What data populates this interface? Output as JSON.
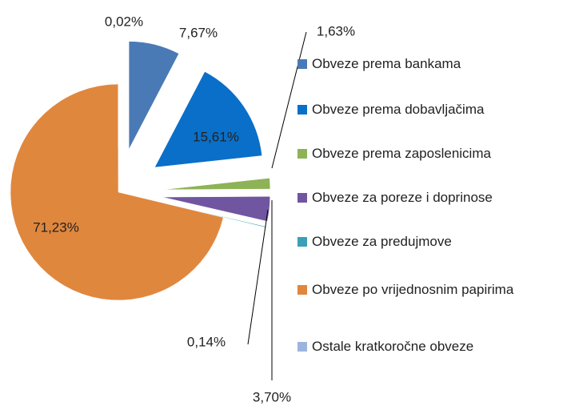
{
  "chart_data": {
    "type": "pie",
    "categories": [
      "Obveze prema bankama",
      "Obveze prema dobavljačima",
      "Obveze prema zaposlenicima",
      "Obveze za poreze i doprinose",
      "Obveze za predujmove",
      "Obveze po vrijednosnim papirima",
      "Ostale kratkoročne obveze"
    ],
    "values": [
      7.67,
      15.61,
      1.63,
      3.7,
      0.14,
      71.23,
      0.02
    ],
    "value_labels": [
      "7,67%",
      "15,61%",
      "1,63%",
      "3,70%",
      "0,14%",
      "71,23%",
      "0,02%"
    ],
    "colors": [
      "#4a7ab5",
      "#0a6fc8",
      "#8db356",
      "#7056a0",
      "#3aa0b8",
      "#e0873e",
      "#9db5de"
    ],
    "legend": "right"
  }
}
